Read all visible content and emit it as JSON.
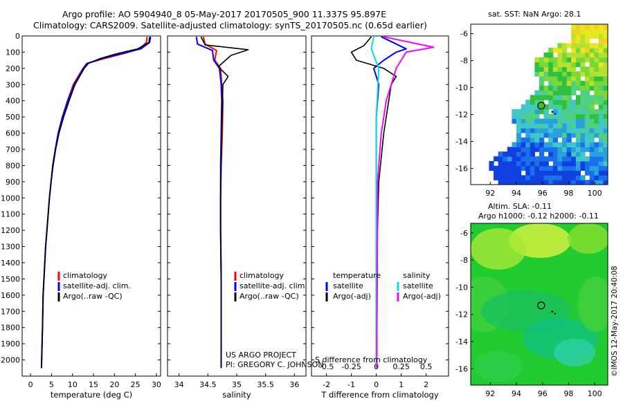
{
  "header": {
    "line1": "Argo profile: AO 5904940_8 05-May-2017 20170505_900 11.337S 95.897E",
    "line2": "Climatology: CARS2009. Satellite-adjusted climatology: synTS_20170505.nc (0.65d earlier)"
  },
  "side_text": "©IMOS 12-May-2017 20:40:08",
  "colors": {
    "climatology": "#ff0000",
    "satellite": "#0000ff",
    "argo": "#000000",
    "sat_sal": "#00e0e0",
    "argo_sal": "#ff00ff"
  },
  "chart_data": [
    {
      "id": "temperature",
      "type": "line",
      "xlabel": "temperature (deg C)",
      "xlim": [
        -2,
        31
      ],
      "xticks": [
        0,
        5,
        10,
        15,
        20,
        25,
        30
      ],
      "ylim": [
        2100,
        0
      ],
      "yticks": [
        0,
        100,
        200,
        300,
        400,
        500,
        600,
        700,
        800,
        900,
        1000,
        1100,
        1200,
        1300,
        1400,
        1500,
        1600,
        1700,
        1800,
        1900,
        2000
      ],
      "legend": [
        "climatology",
        "satellite-adj. clim.",
        "Argo(..raw -QC)"
      ],
      "series": [
        {
          "name": "climatology",
          "color": "#ff0000",
          "x": [
            27.8,
            27.6,
            26,
            22,
            17.5,
            13.5,
            12.5,
            10.2,
            8.8,
            7.6,
            6.6,
            5.9,
            5.3,
            4.9,
            4.5,
            4.2,
            3.9,
            3.6,
            3.4,
            3.2,
            3.0,
            2.85,
            2.7,
            2.6
          ],
          "y": [
            5,
            40,
            80,
            110,
            140,
            170,
            200,
            300,
            400,
            500,
            600,
            700,
            800,
            900,
            1000,
            1100,
            1200,
            1300,
            1400,
            1500,
            1600,
            1800,
            1950,
            2050
          ]
        },
        {
          "name": "satellite-adj. clim.",
          "color": "#0000ff",
          "x": [
            28.6,
            28.4,
            26.3,
            21.5,
            17,
            13.4,
            12.6,
            10.4,
            8.9,
            7.6,
            6.6,
            5.9,
            5.3,
            4.9,
            4.5,
            4.2,
            3.9,
            3.6,
            3.4,
            3.2,
            3.0,
            2.85,
            2.7,
            2.6
          ],
          "y": [
            5,
            40,
            80,
            110,
            140,
            170,
            200,
            300,
            400,
            500,
            600,
            700,
            800,
            900,
            1000,
            1100,
            1200,
            1300,
            1400,
            1500,
            1600,
            1800,
            1950,
            2050
          ]
        },
        {
          "name": "Argo(..raw -QC)",
          "color": "#000000",
          "x": [
            28.4,
            28.2,
            25.5,
            20.5,
            16.5,
            13.8,
            12.8,
            10.6,
            9.2,
            7.9,
            6.8,
            6.0,
            5.4,
            4.9,
            4.5,
            4.2,
            3.9,
            3.6,
            3.4,
            3.2,
            3.0,
            2.85,
            2.7,
            2.6
          ],
          "y": [
            5,
            40,
            80,
            110,
            140,
            170,
            200,
            300,
            400,
            500,
            600,
            700,
            800,
            900,
            1000,
            1100,
            1200,
            1300,
            1400,
            1500,
            1600,
            1800,
            1950,
            2050
          ]
        }
      ]
    },
    {
      "id": "salinity",
      "type": "line",
      "xlabel": "salinity",
      "xlim": [
        33.8,
        36.2
      ],
      "xticks": [
        34,
        34.5,
        35,
        35.5,
        36
      ],
      "ylim": [
        2100,
        0
      ],
      "legend": [
        "climatology",
        "satellite-adj. clim.",
        "Argo(..raw -QC)"
      ],
      "annotations": [
        "US ARGO PROJECT",
        "PI: GREGORY C. JOHNSON"
      ],
      "series": [
        {
          "name": "climatology",
          "color": "#ff0000",
          "x": [
            34.42,
            34.45,
            34.65,
            34.62,
            34.72,
            34.74,
            34.76,
            34.75,
            34.73,
            34.72,
            34.72,
            34.73,
            34.73,
            34.73
          ],
          "y": [
            5,
            50,
            90,
            150,
            200,
            300,
            400,
            600,
            800,
            1000,
            1200,
            1500,
            1800,
            2050
          ]
        },
        {
          "name": "satellite-adj. clim.",
          "color": "#0000ff",
          "x": [
            34.3,
            34.32,
            34.58,
            34.6,
            34.7,
            34.73,
            34.74,
            34.73,
            34.72,
            34.72,
            34.72,
            34.73,
            34.73,
            34.73
          ],
          "y": [
            5,
            50,
            90,
            150,
            200,
            300,
            400,
            600,
            800,
            1000,
            1200,
            1500,
            1800,
            2050
          ]
        },
        {
          "name": "Argo(..raw -QC)",
          "color": "#000000",
          "x": [
            34.38,
            34.45,
            35.2,
            34.9,
            34.68,
            34.85,
            34.76,
            34.74,
            34.73,
            34.72,
            34.72,
            34.73,
            34.73,
            34.73
          ],
          "y": [
            5,
            55,
            85,
            120,
            190,
            250,
            300,
            600,
            800,
            1000,
            1200,
            1500,
            1800,
            2050
          ]
        }
      ]
    },
    {
      "id": "difference",
      "type": "line",
      "xlabel_bottom": "T difference from climatology",
      "xlabel_top": "S difference from climatology",
      "xlim": [
        -2.6,
        2.9
      ],
      "xticks_bottom": [
        -2,
        -1,
        0,
        1,
        2
      ],
      "xticks_top_labels": [
        "-0.5",
        "-0.25",
        "0",
        "0.25",
        "0.5"
      ],
      "ylim": [
        2100,
        0
      ],
      "legend_headers": [
        "temperature",
        "salinity"
      ],
      "legend": [
        "satellite",
        "Argo(-adj)",
        "satellite",
        "Argo(-adj)"
      ],
      "series": [
        {
          "name": "satellite",
          "color": "#0000ff",
          "x": [
            0.2,
            1.2,
            0.8,
            0.3,
            -0.1,
            0.1,
            0,
            0,
            0,
            0
          ],
          "y": [
            5,
            80,
            100,
            150,
            200,
            300,
            500,
            800,
            1200,
            2050
          ]
        },
        {
          "name": "Argo(-adj)",
          "color": "#000000",
          "x": [
            -0.2,
            -0.5,
            -1.0,
            -0.8,
            0.3,
            0.8,
            0.6,
            0.3,
            0.1,
            0.05,
            0.02
          ],
          "y": [
            5,
            60,
            100,
            150,
            200,
            250,
            300,
            600,
            900,
            1200,
            2050
          ]
        },
        {
          "name": "satellite",
          "color": "#00e0e0",
          "x": [
            -0.1,
            -0.2,
            0.1,
            0,
            0,
            0,
            0
          ],
          "y": [
            5,
            80,
            200,
            500,
            900,
            1400,
            2050
          ]
        },
        {
          "name": "Argo(-adj)",
          "color": "#ff00ff",
          "x": [
            0.3,
            2.3,
            1.2,
            0.8,
            0.4,
            0.2,
            0.05,
            0.02
          ],
          "y": [
            5,
            70,
            100,
            200,
            400,
            600,
            900,
            2050
          ]
        }
      ]
    },
    {
      "id": "sst_map",
      "type": "heatmap",
      "title": "sat. SST: NaN Argo: 28.1",
      "xlim": [
        90.5,
        101
      ],
      "ylim": [
        -17.2,
        -5.3
      ],
      "xticks": [
        92,
        94,
        96,
        98,
        100
      ],
      "yticks": [
        -6,
        -8,
        -10,
        -12,
        -14,
        -16
      ],
      "argo_position": [
        95.9,
        -11.34
      ]
    },
    {
      "id": "sla_map",
      "type": "heatmap",
      "title_line1": "Altim. SLA: -0.11",
      "title_line2": "Argo h1000: -0.12 h2000: -0.11",
      "xlim": [
        90.5,
        101
      ],
      "ylim": [
        -17.2,
        -5.3
      ],
      "xticks": [
        92,
        94,
        96,
        98,
        100
      ],
      "yticks": [
        -6,
        -8,
        -10,
        -12,
        -14,
        -16
      ],
      "argo_position": [
        95.9,
        -11.34
      ]
    }
  ]
}
